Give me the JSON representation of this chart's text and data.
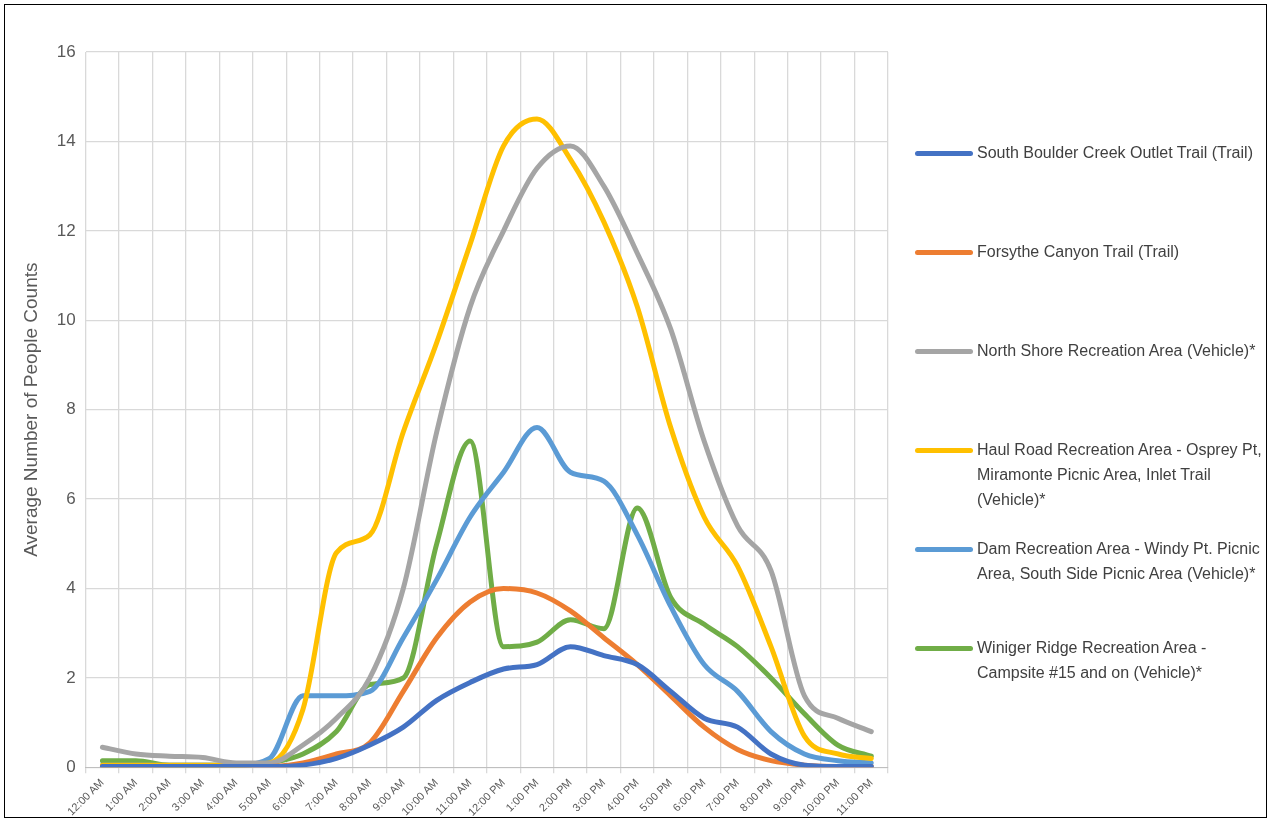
{
  "chart_data": {
    "type": "line",
    "ylabel": "Average Number of People Counts",
    "categories": [
      "12:00 AM",
      "1:00 AM",
      "2:00 AM",
      "3:00 AM",
      "4:00 AM",
      "5:00 AM",
      "6:00 AM",
      "7:00 AM",
      "8:00 AM",
      "9:00 AM",
      "10:00 AM",
      "11:00 AM",
      "12:00 PM",
      "1:00 PM",
      "2:00 PM",
      "3:00 PM",
      "4:00 PM",
      "5:00 PM",
      "6:00 PM",
      "7:00 PM",
      "8:00 PM",
      "9:00 PM",
      "10:00 PM",
      "11:00 PM"
    ],
    "series": [
      {
        "name": "South Boulder Creek Outlet Trail (Trail)",
        "color": "#4472c4",
        "values": [
          0.02,
          0.02,
          0.02,
          0.02,
          0.02,
          0.02,
          0.05,
          0.2,
          0.5,
          0.9,
          1.5,
          1.9,
          2.2,
          2.3,
          2.7,
          2.5,
          2.3,
          1.7,
          1.1,
          0.9,
          0.3,
          0.05,
          0.02,
          0.02
        ]
      },
      {
        "name": "Forsythe Canyon Trail (Trail)",
        "color": "#ed7d31",
        "values": [
          0.02,
          0.02,
          0.02,
          0.02,
          0.02,
          0.02,
          0.1,
          0.3,
          0.55,
          1.7,
          2.9,
          3.7,
          4.0,
          3.9,
          3.5,
          2.9,
          2.3,
          1.6,
          0.9,
          0.4,
          0.15,
          0.05,
          0.02,
          0.02
        ]
      },
      {
        "name": "North Shore Recreation Area (Vehicle)*",
        "color": "#a5a5a5",
        "values": [
          0.45,
          0.3,
          0.25,
          0.22,
          0.1,
          0.1,
          0.5,
          1.1,
          2.0,
          4.0,
          7.5,
          10.3,
          12.0,
          13.4,
          13.9,
          13.0,
          11.5,
          9.8,
          7.3,
          5.4,
          4.4,
          1.6,
          1.1,
          0.8
        ]
      },
      {
        "name": "Haul Road Recreation Area - Osprey Pt, Miramonte Picnic Area, Inlet Trail (Vehicle)*",
        "color": "#ffc000",
        "values": [
          0.05,
          0.05,
          0.05,
          0.05,
          0.05,
          0.1,
          1.3,
          4.8,
          5.2,
          7.5,
          9.5,
          11.7,
          13.9,
          14.5,
          13.6,
          12.2,
          10.3,
          7.6,
          5.6,
          4.5,
          2.7,
          0.7,
          0.3,
          0.2
        ]
      },
      {
        "name": "Dam Recreation Area - Windy Pt. Picnic Area, South Side Picnic Area (Vehicle)*",
        "color": "#5b9bd5",
        "values": [
          0.05,
          0.05,
          0.05,
          0.05,
          0.05,
          0.2,
          1.6,
          1.6,
          1.7,
          2.9,
          4.2,
          5.6,
          6.6,
          7.6,
          6.6,
          6.4,
          5.2,
          3.6,
          2.3,
          1.7,
          0.8,
          0.3,
          0.15,
          0.1
        ]
      },
      {
        "name": "Winiger Ridge Recreation Area - Campsite #15 and on (Vehicle)*",
        "color": "#70ad47",
        "values": [
          0.15,
          0.15,
          0.05,
          0.05,
          0.05,
          0.1,
          0.3,
          0.8,
          1.85,
          2.0,
          5.0,
          7.3,
          2.7,
          2.8,
          3.3,
          3.1,
          5.8,
          3.8,
          3.2,
          2.7,
          2.0,
          1.2,
          0.5,
          0.25
        ]
      }
    ],
    "ylim": [
      0,
      16
    ],
    "yticks": [
      0,
      2,
      4,
      6,
      8,
      10,
      12,
      14,
      16
    ],
    "grid": true,
    "legend": "right",
    "marker": "none",
    "line_style": "solid"
  }
}
